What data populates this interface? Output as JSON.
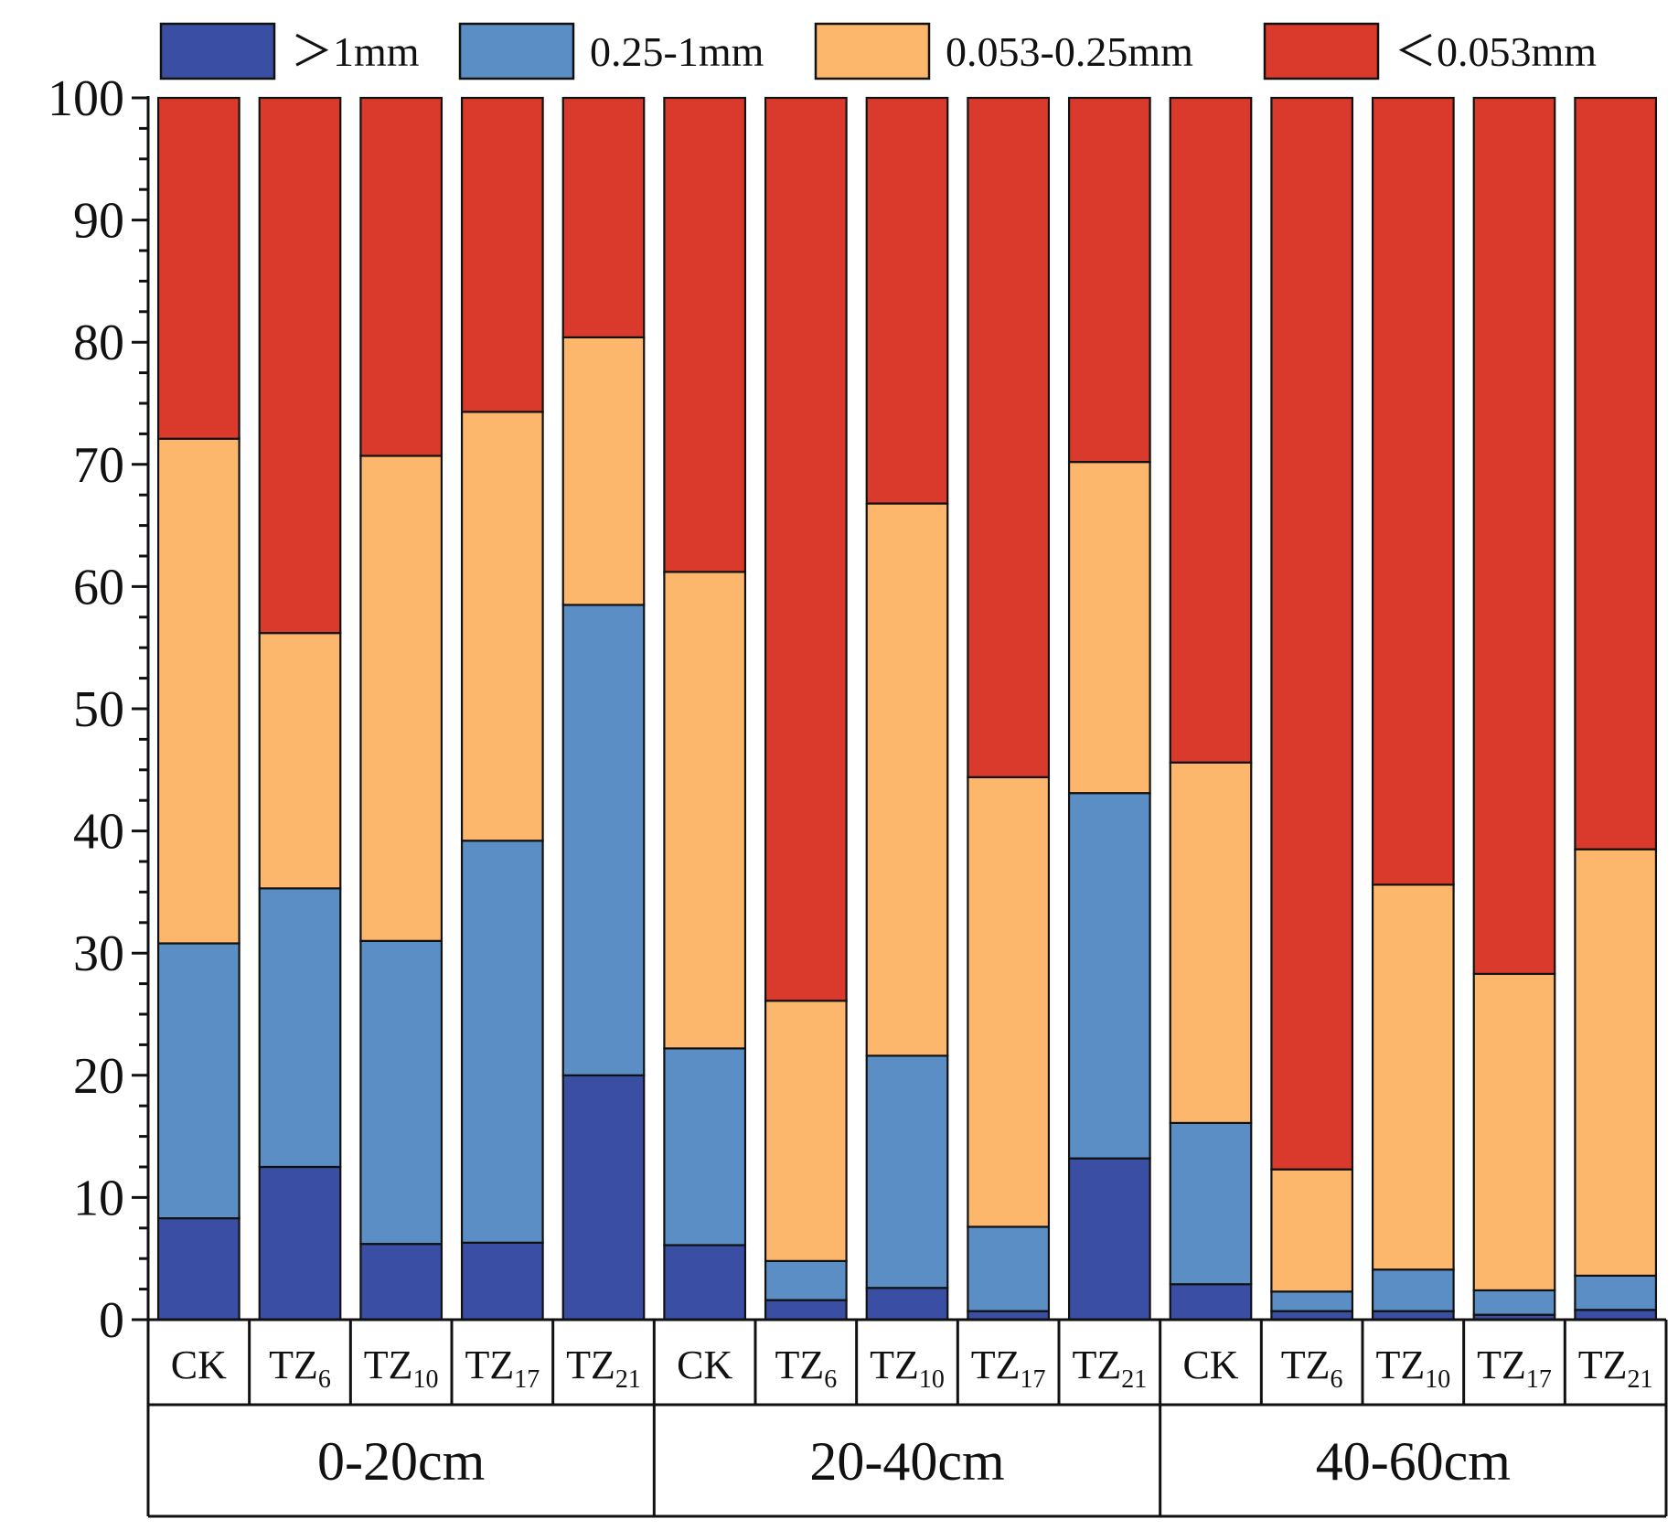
{
  "chart_data": {
    "type": "bar",
    "stacked": true,
    "ylim": [
      0,
      100
    ],
    "yticks": [
      "0",
      "10",
      "20",
      "30",
      "40",
      "50",
      "60",
      "70",
      "80",
      "90",
      "100"
    ],
    "legend_position": "top",
    "grid": false,
    "groups": [
      {
        "label": "0-20cm",
        "categories": [
          {
            "main": "CK",
            "sub": ""
          },
          {
            "main": "TZ",
            "sub": "6"
          },
          {
            "main": "TZ",
            "sub": "10"
          },
          {
            "main": "TZ",
            "sub": "17"
          },
          {
            "main": "TZ",
            "sub": "21"
          }
        ]
      },
      {
        "label": "20-40cm",
        "categories": [
          {
            "main": "CK",
            "sub": ""
          },
          {
            "main": "TZ",
            "sub": "6"
          },
          {
            "main": "TZ",
            "sub": "10"
          },
          {
            "main": "TZ",
            "sub": "17"
          },
          {
            "main": "TZ",
            "sub": "21"
          }
        ]
      },
      {
        "label": "40-60cm",
        "categories": [
          {
            "main": "CK",
            "sub": ""
          },
          {
            "main": "TZ",
            "sub": "6"
          },
          {
            "main": "TZ",
            "sub": "10"
          },
          {
            "main": "TZ",
            "sub": "17"
          },
          {
            "main": "TZ",
            "sub": "21"
          }
        ]
      }
    ],
    "series": [
      {
        "name": "＞1mm",
        "color": "#3a4fa3",
        "values": [
          8.3,
          12.5,
          6.2,
          6.3,
          20.0,
          6.1,
          1.6,
          2.6,
          0.7,
          13.2,
          2.9,
          0.7,
          0.7,
          0.4,
          0.8
        ]
      },
      {
        "name": "0.25-1mm",
        "color": "#5b8ec4",
        "values": [
          22.5,
          22.8,
          24.8,
          32.9,
          38.5,
          16.1,
          3.2,
          19.0,
          6.9,
          29.9,
          13.2,
          1.6,
          3.4,
          2.0,
          2.8
        ]
      },
      {
        "name": "0.053-0.25mm",
        "color": "#fdb76c",
        "values": [
          41.3,
          20.9,
          39.7,
          35.1,
          21.9,
          39.0,
          21.3,
          45.2,
          36.8,
          27.1,
          29.5,
          10.0,
          31.5,
          25.9,
          34.9
        ]
      },
      {
        "name": "＜0.053mm",
        "color": "#d93a2b",
        "values": [
          27.9,
          43.8,
          29.3,
          25.7,
          19.6,
          38.8,
          73.9,
          33.2,
          55.6,
          29.8,
          54.4,
          87.7,
          64.4,
          71.7,
          61.5
        ]
      }
    ]
  }
}
